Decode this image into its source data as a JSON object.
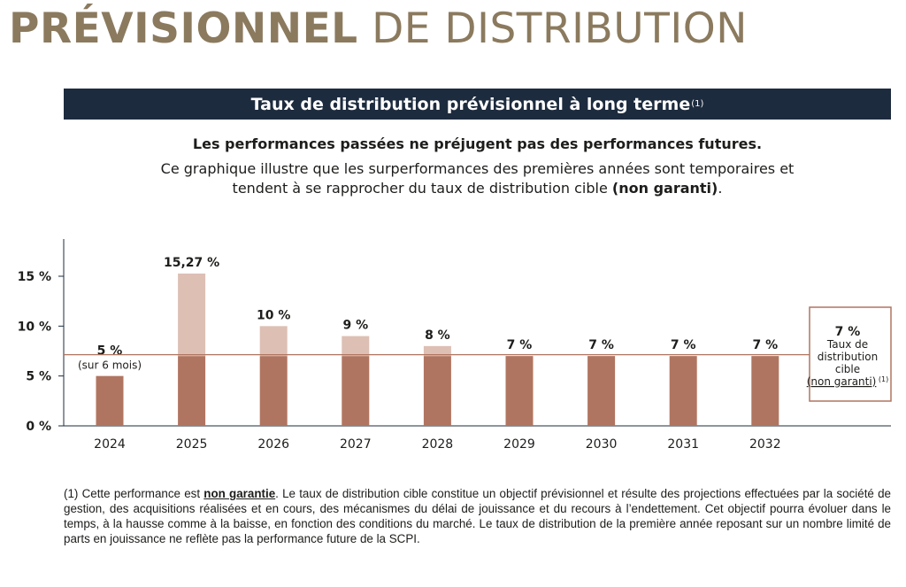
{
  "header": {
    "title_bold": "PRÉVISIONNEL",
    "title_rest": "DE DISTRIBUTION"
  },
  "banner": {
    "text": "Taux de distribution prévisionnel à long terme",
    "note": "(1)"
  },
  "intro": {
    "disclaimer": "Les performances passées ne préjugent pas des performances futures.",
    "line2": "Ce graphique illustre que les surperformances des premières années sont temporaires et",
    "line3_start": "tendent à se rapprocher du taux de distribution cible ",
    "line3_bold": "(non garanti)",
    "line3_end": "."
  },
  "colors": {
    "title": "#8b7a5e",
    "banner_bg": "#1d2b3e",
    "bar_dark": "#b07560",
    "bar_light": "#ddbfb4",
    "target_line": "#b07560"
  },
  "chart_data": {
    "type": "bar",
    "categories": [
      "2024",
      "2025",
      "2026",
      "2027",
      "2028",
      "2029",
      "2030",
      "2031",
      "2032"
    ],
    "series": [
      {
        "values": [
          5,
          7,
          7,
          7,
          7,
          7,
          7,
          7,
          7
        ]
      },
      {
        "values": [
          0,
          8.27,
          3,
          2,
          1,
          0,
          0,
          0,
          0
        ]
      }
    ],
    "totals": [
      5,
      15.27,
      10,
      9,
      8,
      7,
      7,
      7,
      7
    ],
    "data_labels": [
      "5 %",
      "15,27 %",
      "10 %",
      "9 %",
      "8 %",
      "7 %",
      "7 %",
      "7 %",
      "7 %"
    ],
    "data_sublabels": [
      "(sur 6 mois)",
      "",
      "",
      "",
      "",
      "",
      "",
      "",
      ""
    ],
    "y_ticks": [
      0,
      5,
      10,
      15
    ],
    "y_tick_labels": [
      "0 %",
      "5 %",
      "10 %",
      "15 %"
    ],
    "ylim": [
      0,
      18.5
    ],
    "reference_line": 7,
    "grid": false,
    "target_box": {
      "value_label": "7 %",
      "lines": [
        "Taux de",
        "distribution",
        "cible"
      ],
      "note_text": "non garanti",
      "note_sup": "(1)"
    },
    "xlabel": "",
    "ylabel": "",
    "title": ""
  },
  "footnote": {
    "start": "(1) Cette performance est ",
    "emphasis": "non garantie",
    "rest": ". Le taux de distribution cible constitue un objectif prévisionnel et résulte des projections effectuées par la société de gestion, des acquisitions réalisées et en cours, des mécanismes du délai de jouissance et du recours à l’endettement. Cet objectif pourra évoluer dans le temps, à la hausse comme à la baisse, en fonction des conditions du marché. Le taux de distribution de la première année reposant sur un nombre limité de parts en jouissance ne reflète pas la performance future de la SCPI."
  }
}
